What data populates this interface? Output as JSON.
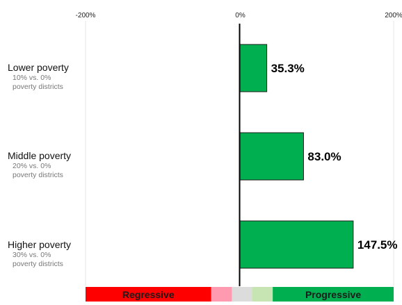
{
  "chart_data": {
    "type": "bar",
    "orientation": "horizontal",
    "categories": [
      "Lower poverty",
      "Middle poverty",
      "Higher poverty"
    ],
    "category_subtitles": [
      "10% vs. 0%\npoverty districts",
      "20% vs. 0%\npoverty districts",
      "30% vs. 0%\npoverty districts"
    ],
    "values": [
      35.3,
      83.0,
      147.5
    ],
    "value_labels": [
      "35.3%",
      "83.0%",
      "147.5%"
    ],
    "xlim": [
      -200,
      200
    ],
    "x_ticks": [
      -200,
      0,
      200
    ],
    "x_tick_labels": [
      "-200%",
      "0%",
      "200%"
    ],
    "title": "",
    "xlabel": "",
    "ylabel": "",
    "grid": true,
    "bar_color": "#00b050",
    "legend_scale": {
      "position": "bottom",
      "labels": {
        "left": "Regressive",
        "right": "Progressive"
      },
      "segments": [
        {
          "from": -200,
          "to": -37,
          "color": "#ff0000"
        },
        {
          "from": -37,
          "to": -10,
          "color": "#ff9ab0"
        },
        {
          "from": -10,
          "to": 16,
          "color": "#dcdcdc"
        },
        {
          "from": 16,
          "to": 43,
          "color": "#c6e5b3"
        },
        {
          "from": 43,
          "to": 200,
          "color": "#00b050"
        }
      ]
    }
  }
}
